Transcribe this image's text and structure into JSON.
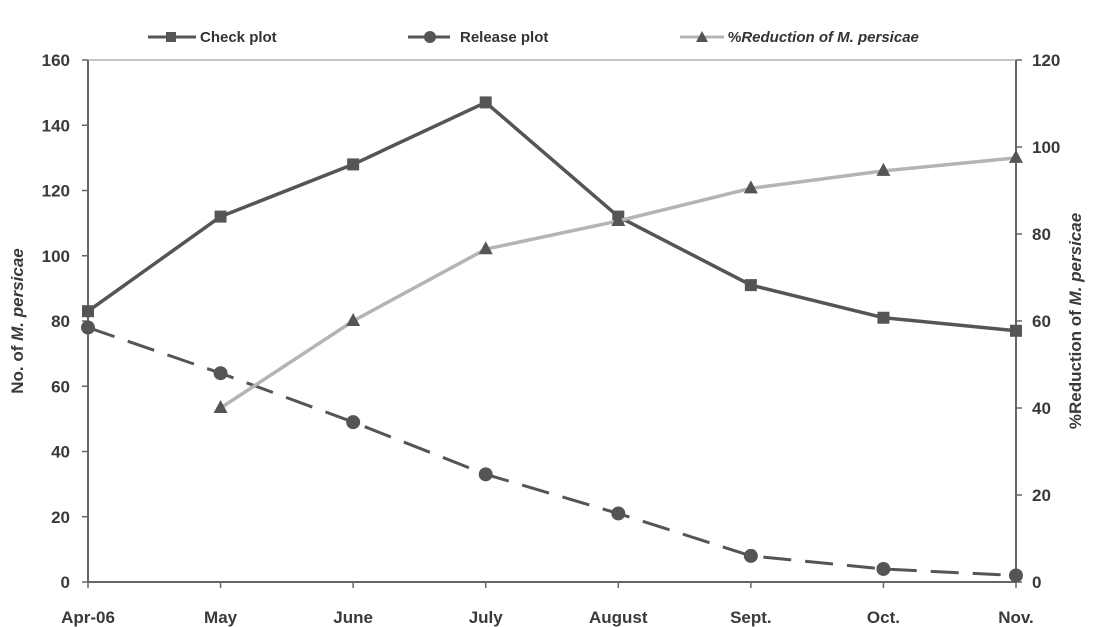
{
  "chart_data": {
    "type": "line",
    "categories": [
      "Apr-06",
      "May",
      "June",
      "July",
      "August",
      "Sept.",
      "Oct.",
      "Nov."
    ],
    "ylabel_prefix": "No. of ",
    "ylabel_italic": "M. persicae",
    "y2label_prefix": "%Reduction of ",
    "y2label_italic": "M. persicae",
    "ylim": [
      0,
      160
    ],
    "y2lim": [
      0,
      120
    ],
    "yticks": [
      "0",
      "20",
      "40",
      "60",
      "80",
      "100",
      "120",
      "140",
      "160"
    ],
    "y2ticks": [
      "0",
      "20",
      "40",
      "60",
      "80",
      "100",
      "120"
    ],
    "grid": false,
    "legend_position": "top",
    "series": [
      {
        "name": "Check plot",
        "axis": "left",
        "marker": "square",
        "line_style": "solid",
        "color": "#555555",
        "values": [
          83,
          112,
          128,
          147,
          112,
          91,
          81,
          77
        ]
      },
      {
        "name": "Release plot",
        "axis": "left",
        "marker": "circle",
        "line_style": "dashed",
        "color": "#555555",
        "values": [
          78,
          64,
          49,
          33,
          21,
          8,
          4,
          2
        ]
      },
      {
        "name_prefix": "%",
        "name_italic": "Reduction of M. persicae",
        "axis": "right",
        "marker": "triangle",
        "line_style": "solid",
        "color": "#b4b4b4",
        "values": [
          null,
          40,
          60,
          76.5,
          83,
          90.5,
          94.5,
          97.5
        ]
      }
    ]
  }
}
